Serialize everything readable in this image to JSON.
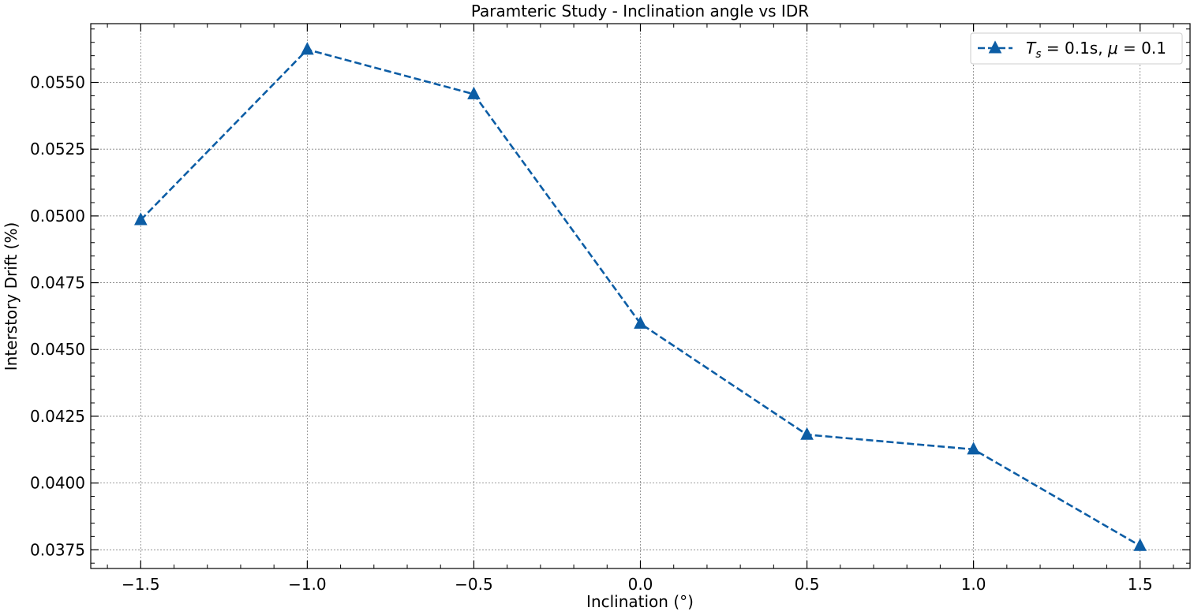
{
  "chart_data": {
    "type": "line",
    "title": "Paramteric Study - Inclination angle vs IDR",
    "xlabel": "Inclination (°)",
    "ylabel": "Interstory Drift (%)",
    "xlim": [
      -1.65,
      1.65
    ],
    "ylim": [
      0.0368,
      0.0572
    ],
    "xticks": [
      -1.5,
      -1.0,
      -0.5,
      0.0,
      0.5,
      1.0,
      1.5
    ],
    "xtick_labels": [
      "−1.5",
      "−1.0",
      "−0.5",
      "0.0",
      "0.5",
      "1.0",
      "1.5"
    ],
    "yticks": [
      0.0375,
      0.04,
      0.0425,
      0.045,
      0.0475,
      0.05,
      0.0525,
      0.055
    ],
    "ytick_labels": [
      "0.0375",
      "0.0400",
      "0.0425",
      "0.0450",
      "0.0475",
      "0.0500",
      "0.0525",
      "0.0550"
    ],
    "grid": true,
    "legend_position": "top-right",
    "series": [
      {
        "name": "T_s = 0.1s, μ = 0.1",
        "color": "#0C5DA5",
        "linestyle": "dashed",
        "marker": "triangle",
        "x": [
          -1.5,
          -1.0,
          -0.5,
          0.0,
          0.5,
          1.0,
          1.5
        ],
        "y": [
          0.04985,
          0.05623,
          0.05456,
          0.04597,
          0.04181,
          0.04126,
          0.03765
        ]
      }
    ]
  }
}
